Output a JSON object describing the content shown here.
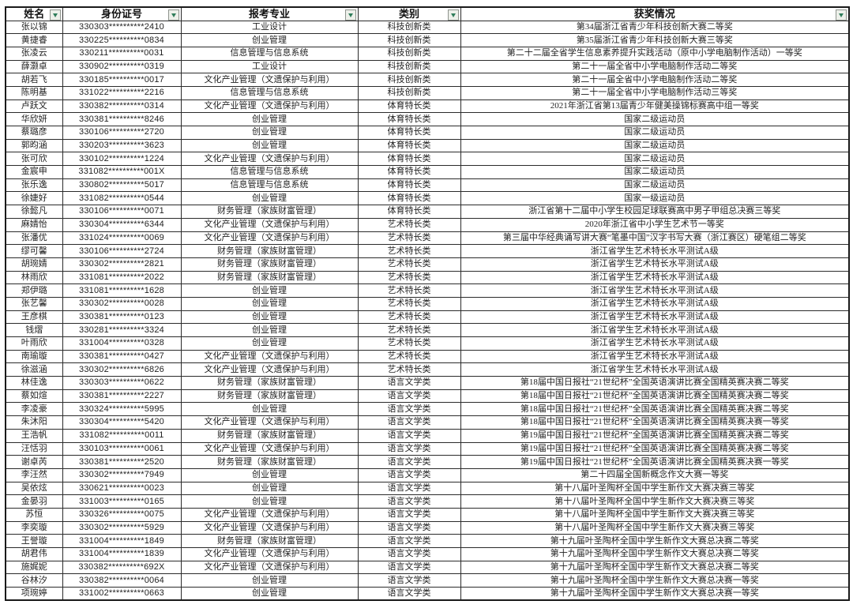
{
  "colors": {
    "border": "#2b2b2b",
    "text": "#1f1f1f",
    "filter_button_bg": "#edf0ea",
    "filter_arrow_green": "#2f7d5a",
    "background": "#ffffff"
  },
  "table": {
    "columns": [
      {
        "label": "姓名",
        "filter": true
      },
      {
        "label": "身份证号",
        "filter": true
      },
      {
        "label": "报考专业",
        "filter": true
      },
      {
        "label": "类别",
        "filter": true
      },
      {
        "label": "获奖情况",
        "filter": true
      }
    ],
    "rows": [
      {
        "name": "张以锦",
        "id": "330303**********2410",
        "major": "工业设计",
        "category": "科技创新类",
        "award": "第34届浙江省青少年科技创新大赛二等奖"
      },
      {
        "name": "黄捷睿",
        "id": "330225**********0834",
        "major": "创业管理",
        "category": "科技创新类",
        "award": "第35届浙江省青少年科技创新大赛三等奖"
      },
      {
        "name": "张凌云",
        "id": "330211**********0031",
        "major": "信息管理与信息系统",
        "category": "科技创新类",
        "award": "第二十二届全省学生信息素养提升实践活动（原中小学电脑制作活动）一等奖"
      },
      {
        "name": "薛灏卓",
        "id": "330902**********0319",
        "major": "工业设计",
        "category": "科技创新类",
        "award": "第二十一届全省中小学电脑制作活动二等奖"
      },
      {
        "name": "胡若飞",
        "id": "330185**********0017",
        "major": "文化产业管理（文遗保护与利用）",
        "category": "科技创新类",
        "award": "第二十一届全省中小学电脑制作活动二等奖"
      },
      {
        "name": "陈明基",
        "id": "331022**********2216",
        "major": "信息管理与信息系统",
        "category": "科技创新类",
        "award": "第二十一届全省中小学电脑制作活动三等奖"
      },
      {
        "name": "卢跃文",
        "id": "330382**********0314",
        "major": "文化产业管理（文遗保护与利用）",
        "category": "体育特长类",
        "award": "2021年浙江省第13届青少年健美操锦标赛高中组一等奖"
      },
      {
        "name": "华欣妍",
        "id": "330381**********8246",
        "major": "创业管理",
        "category": "体育特长类",
        "award": "国家二级运动员"
      },
      {
        "name": "蔡璐彦",
        "id": "330106**********2720",
        "major": "创业管理",
        "category": "体育特长类",
        "award": "国家二级运动员"
      },
      {
        "name": "郭昀涵",
        "id": "330203**********3623",
        "major": "创业管理",
        "category": "体育特长类",
        "award": "国家二级运动员"
      },
      {
        "name": "张可欣",
        "id": "330102**********1224",
        "major": "文化产业管理（文遗保护与利用）",
        "category": "体育特长类",
        "award": "国家二级运动员"
      },
      {
        "name": "金宸申",
        "id": "331082**********001X",
        "major": "信息管理与信息系统",
        "category": "体育特长类",
        "award": "国家二级运动员"
      },
      {
        "name": "张乐逸",
        "id": "330802**********5017",
        "major": "信息管理与信息系统",
        "category": "体育特长类",
        "award": "国家二级运动员"
      },
      {
        "name": "徐婕好",
        "id": "331082**********0544",
        "major": "创业管理",
        "category": "体育特长类",
        "award": "国家一级运动员"
      },
      {
        "name": "徐懿凡",
        "id": "330106**********0071",
        "major": "财务管理（家族财富管理）",
        "category": "体育特长类",
        "award": "浙江省第十二届中小学生校园足球联赛高中男子甲组总决赛三等奖"
      },
      {
        "name": "麻婧怡",
        "id": "330304**********6344",
        "major": "文化产业管理（文遗保护与利用）",
        "category": "艺术特长类",
        "award": "2020年浙江省中小学生艺术节一等奖"
      },
      {
        "name": "张潘优",
        "id": "331024**********0069",
        "major": "文化产业管理（文遗保护与利用）",
        "category": "艺术特长类",
        "award": "第三届中华经典诵写讲大赛“笔墨中国”汉字书写大赛（浙江赛区）硬笔组二等奖"
      },
      {
        "name": "缪可馨",
        "id": "330106**********2724",
        "major": "财务管理（家族财富管理）",
        "category": "艺术特长类",
        "award": "浙江省学生艺术特长水平测试A级"
      },
      {
        "name": "胡琬婧",
        "id": "330302**********2821",
        "major": "财务管理（家族财富管理）",
        "category": "艺术特长类",
        "award": "浙江省学生艺术特长水平测试A级"
      },
      {
        "name": "林雨欣",
        "id": "331081**********2022",
        "major": "财务管理（家族财富管理）",
        "category": "艺术特长类",
        "award": "浙江省学生艺术特长水平测试A级"
      },
      {
        "name": "郑伊璐",
        "id": "331081**********1628",
        "major": "创业管理",
        "category": "艺术特长类",
        "award": "浙江省学生艺术特长水平测试A级"
      },
      {
        "name": "张艺馨",
        "id": "330302**********0028",
        "major": "创业管理",
        "category": "艺术特长类",
        "award": "浙江省学生艺术特长水平测试A级"
      },
      {
        "name": "王彦棋",
        "id": "330381**********0123",
        "major": "创业管理",
        "category": "艺术特长类",
        "award": "浙江省学生艺术特长水平测试A级"
      },
      {
        "name": "钱熠",
        "id": "330281**********3324",
        "major": "创业管理",
        "category": "艺术特长类",
        "award": "浙江省学生艺术特长水平测试A级"
      },
      {
        "name": "叶雨欣",
        "id": "331004**********0328",
        "major": "创业管理",
        "category": "艺术特长类",
        "award": "浙江省学生艺术特长水平测试A级"
      },
      {
        "name": "南瑜璇",
        "id": "330381**********0427",
        "major": "文化产业管理（文遗保护与利用）",
        "category": "艺术特长类",
        "award": "浙江省学生艺术特长水平测试A级"
      },
      {
        "name": "徐滋涵",
        "id": "330302**********6826",
        "major": "文化产业管理（文遗保护与利用）",
        "category": "艺术特长类",
        "award": "浙江省学生艺术特长水平测试A级"
      },
      {
        "name": "林佳逸",
        "id": "330303**********0622",
        "major": "财务管理（家族财富管理）",
        "category": "语言文学类",
        "award": "第18届中国日报社“21世纪杯”全国英语演讲比赛全国精英赛决赛二等奖"
      },
      {
        "name": "蔡如煊",
        "id": "330381**********2227",
        "major": "财务管理（家族财富管理）",
        "category": "语言文学类",
        "award": "第18届中国日报社“21世纪杯”全国英语演讲比赛全国精英赛决赛二等奖"
      },
      {
        "name": "李凌豪",
        "id": "330324**********5995",
        "major": "创业管理",
        "category": "语言文学类",
        "award": "第18届中国日报社“21世纪杯”全国英语演讲比赛全国精英赛决赛二等奖"
      },
      {
        "name": "朱沐阳",
        "id": "330304**********5420",
        "major": "文化产业管理（文遗保护与利用）",
        "category": "语言文学类",
        "award": "第18届中国日报社“21世纪杯”全国英语演讲比赛全国精英赛决赛一等奖"
      },
      {
        "name": "王浩帆",
        "id": "331082**********0011",
        "major": "财务管理（家族财富管理）",
        "category": "语言文学类",
        "award": "第19届中国日报社“21世纪杯”全国英语演讲比赛全国精英赛决赛二等奖"
      },
      {
        "name": "汪恬羽",
        "id": "330103**********0061",
        "major": "文化产业管理（文遗保护与利用）",
        "category": "语言文学类",
        "award": "第19届中国日报社“21世纪杯”全国英语演讲比赛全国精英赛决赛二等奖"
      },
      {
        "name": "谢卓芮",
        "id": "330381**********2520",
        "major": "财务管理（家族财富管理）",
        "category": "语言文学类",
        "award": "第19届中国日报社“21世纪杯”全国英语演讲比赛全国精英赛决赛一等奖"
      },
      {
        "name": "李汪然",
        "id": "330302**********7949",
        "major": "创业管理",
        "category": "语言文学类",
        "award": "第二十四届全国新概念作文大赛一等奖"
      },
      {
        "name": "吴依炫",
        "id": "330621**********0023",
        "major": "创业管理",
        "category": "语言文学类",
        "award": "第十八届叶圣陶杯全国中学生新作文大赛决赛三等奖"
      },
      {
        "name": "金晏羽",
        "id": "331003**********0165",
        "major": "创业管理",
        "category": "语言文学类",
        "award": "第十八届叶圣陶杯全国中学生新作文大赛决赛三等奖"
      },
      {
        "name": "苏恒",
        "id": "330326**********0075",
        "major": "文化产业管理（文遗保护与利用）",
        "category": "语言文学类",
        "award": "第十八届叶圣陶杯全国中学生新作文大赛决赛三等奖"
      },
      {
        "name": "李奕璇",
        "id": "330302**********5929",
        "major": "文化产业管理（文遗保护与利用）",
        "category": "语言文学类",
        "award": "第十八届叶圣陶杯全国中学生新作文大赛决赛三等奖"
      },
      {
        "name": "王誉璇",
        "id": "331004**********1849",
        "major": "财务管理（家族财富管理）",
        "category": "语言文学类",
        "award": "第十九届叶圣陶杯全国中学生新作文大赛总决赛二等奖"
      },
      {
        "name": "胡君伟",
        "id": "331004**********1839",
        "major": "文化产业管理（文遗保护与利用）",
        "category": "语言文学类",
        "award": "第十九届叶圣陶杯全国中学生新作文大赛总决赛二等奖"
      },
      {
        "name": "施娓妮",
        "id": "330382**********692X",
        "major": "文化产业管理（文遗保护与利用）",
        "category": "语言文学类",
        "award": "第十九届叶圣陶杯全国中学生新作文大赛总决赛二等奖"
      },
      {
        "name": "谷林汐",
        "id": "330382**********0064",
        "major": "创业管理",
        "category": "语言文学类",
        "award": "第十九届叶圣陶杯全国中学生新作文大赛总决赛一等奖"
      },
      {
        "name": "项琬婷",
        "id": "331002**********0663",
        "major": "创业管理",
        "category": "语言文学类",
        "award": "第十九届叶圣陶杯全国中学生新作文大赛总决赛一等奖"
      }
    ]
  }
}
